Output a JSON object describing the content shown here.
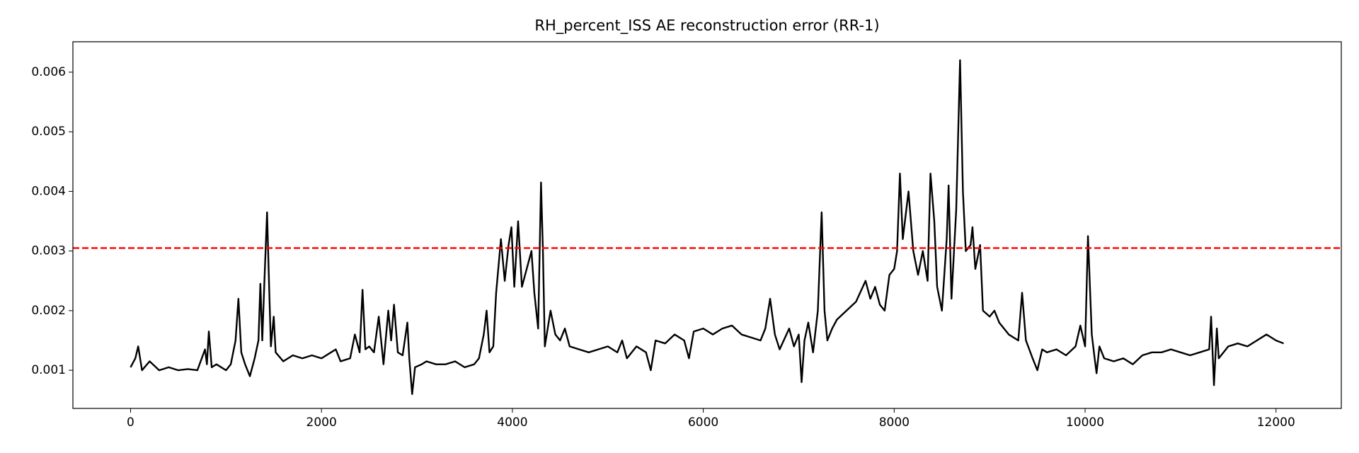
{
  "chart_data": {
    "type": "line",
    "title": "RH_percent_ISS AE reconstruction error (RR-1)",
    "x": [
      0,
      50,
      80,
      120,
      200,
      300,
      400,
      500,
      600,
      700,
      780,
      800,
      820,
      850,
      900,
      1000,
      1050,
      1100,
      1130,
      1160,
      1200,
      1250,
      1300,
      1340,
      1360,
      1380,
      1400,
      1430,
      1450,
      1470,
      1500,
      1520,
      1600,
      1700,
      1800,
      1900,
      2000,
      2100,
      2150,
      2200,
      2300,
      2350,
      2400,
      2430,
      2460,
      2500,
      2550,
      2600,
      2650,
      2700,
      2730,
      2760,
      2800,
      2850,
      2900,
      2920,
      2950,
      2980,
      3050,
      3100,
      3200,
      3300,
      3400,
      3500,
      3600,
      3650,
      3700,
      3730,
      3760,
      3800,
      3830,
      3880,
      3920,
      3960,
      3990,
      4020,
      4060,
      4100,
      4150,
      4200,
      4230,
      4270,
      4300,
      4320,
      4340,
      4400,
      4450,
      4500,
      4550,
      4600,
      4700,
      4800,
      4900,
      5000,
      5100,
      5150,
      5200,
      5300,
      5400,
      5450,
      5500,
      5600,
      5700,
      5800,
      5850,
      5900,
      6000,
      6100,
      6200,
      6300,
      6400,
      6500,
      6600,
      6650,
      6700,
      6750,
      6800,
      6900,
      6950,
      7000,
      7030,
      7060,
      7100,
      7150,
      7200,
      7240,
      7270,
      7300,
      7350,
      7400,
      7500,
      7600,
      7700,
      7750,
      7800,
      7850,
      7900,
      7950,
      8000,
      8030,
      8060,
      8090,
      8150,
      8200,
      8250,
      8300,
      8350,
      8380,
      8420,
      8450,
      8500,
      8550,
      8570,
      8600,
      8650,
      8690,
      8720,
      8750,
      8800,
      8820,
      8850,
      8900,
      8930,
      9000,
      9050,
      9100,
      9200,
      9300,
      9340,
      9380,
      9450,
      9500,
      9550,
      9600,
      9700,
      9800,
      9900,
      9950,
      10000,
      10030,
      10070,
      10100,
      10120,
      10150,
      10200,
      10300,
      10400,
      10500,
      10600,
      10700,
      10800,
      10900,
      11000,
      11100,
      11200,
      11300,
      11320,
      11350,
      11380,
      11400,
      11500,
      11600,
      11700,
      11800,
      11900,
      11950,
      12000,
      12080
    ],
    "series": [
      {
        "color": "#000000",
        "values": [
          0.00105,
          0.0012,
          0.0014,
          0.001,
          0.00115,
          0.001,
          0.00105,
          0.001,
          0.00102,
          0.001,
          0.00135,
          0.0011,
          0.00165,
          0.00105,
          0.0011,
          0.001,
          0.0011,
          0.0015,
          0.0022,
          0.0013,
          0.0011,
          0.0009,
          0.0012,
          0.0015,
          0.00245,
          0.0015,
          0.0024,
          0.00365,
          0.0025,
          0.0014,
          0.0019,
          0.0013,
          0.00115,
          0.00125,
          0.0012,
          0.00125,
          0.0012,
          0.0013,
          0.00135,
          0.00115,
          0.0012,
          0.0016,
          0.0013,
          0.00235,
          0.00135,
          0.0014,
          0.0013,
          0.0019,
          0.0011,
          0.002,
          0.0015,
          0.0021,
          0.0013,
          0.00125,
          0.0018,
          0.0012,
          0.0006,
          0.00105,
          0.0011,
          0.00115,
          0.0011,
          0.0011,
          0.00115,
          0.00105,
          0.0011,
          0.0012,
          0.0016,
          0.002,
          0.0013,
          0.0014,
          0.0023,
          0.0032,
          0.0025,
          0.0031,
          0.0034,
          0.0024,
          0.0035,
          0.0024,
          0.0027,
          0.003,
          0.0023,
          0.0017,
          0.00415,
          0.003,
          0.0014,
          0.002,
          0.0016,
          0.0015,
          0.0017,
          0.0014,
          0.00135,
          0.0013,
          0.00135,
          0.0014,
          0.0013,
          0.0015,
          0.0012,
          0.0014,
          0.0013,
          0.001,
          0.0015,
          0.00145,
          0.0016,
          0.0015,
          0.0012,
          0.00165,
          0.0017,
          0.0016,
          0.0017,
          0.00175,
          0.0016,
          0.00155,
          0.0015,
          0.0017,
          0.0022,
          0.0016,
          0.00135,
          0.0017,
          0.0014,
          0.0016,
          0.0008,
          0.0015,
          0.0018,
          0.0013,
          0.002,
          0.00365,
          0.002,
          0.0015,
          0.0017,
          0.00185,
          0.002,
          0.00215,
          0.0025,
          0.0022,
          0.0024,
          0.0021,
          0.002,
          0.0026,
          0.0027,
          0.003,
          0.0043,
          0.0032,
          0.004,
          0.003,
          0.0026,
          0.003,
          0.0025,
          0.0043,
          0.0035,
          0.0024,
          0.002,
          0.0032,
          0.0041,
          0.0022,
          0.0037,
          0.0062,
          0.004,
          0.003,
          0.0031,
          0.0034,
          0.0027,
          0.0031,
          0.002,
          0.0019,
          0.002,
          0.0018,
          0.0016,
          0.0015,
          0.0023,
          0.0015,
          0.0012,
          0.001,
          0.00135,
          0.0013,
          0.00135,
          0.00125,
          0.0014,
          0.00175,
          0.0014,
          0.00325,
          0.0016,
          0.0012,
          0.00095,
          0.0014,
          0.0012,
          0.00115,
          0.0012,
          0.0011,
          0.00125,
          0.0013,
          0.0013,
          0.00135,
          0.0013,
          0.00125,
          0.0013,
          0.00135,
          0.0019,
          0.00075,
          0.0017,
          0.0012,
          0.0014,
          0.00145,
          0.0014,
          0.0015,
          0.0016,
          0.00155,
          0.0015,
          0.00145
        ]
      }
    ],
    "threshold": 0.00305,
    "threshold_color": "#ff0000",
    "xlim": [
      -604,
      12684
    ],
    "xticks": [
      0,
      2000,
      4000,
      6000,
      8000,
      10000,
      12000
    ],
    "ylim": [
      0.00036,
      0.00651
    ],
    "yticks": [
      0.001,
      0.002,
      0.003,
      0.004,
      0.005,
      0.006
    ]
  }
}
